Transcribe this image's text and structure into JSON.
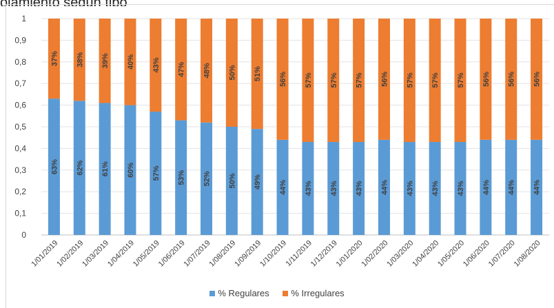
{
  "header": {
    "title_fragment": "ojamiento segun tipo"
  },
  "chart_data": {
    "type": "bar",
    "stacked": true,
    "categories": [
      "1/01/2019",
      "1/02/2019",
      "1/03/2019",
      "1/04/2019",
      "1/05/2019",
      "1/06/2019",
      "1/07/2019",
      "1/08/2019",
      "1/09/2019",
      "1/10/2019",
      "1/11/2019",
      "1/12/2019",
      "1/01/2020",
      "1/02/2020",
      "1/03/2020",
      "1/04/2020",
      "1/05/2020",
      "1/06/2020",
      "1/07/2020",
      "1/08/2020"
    ],
    "series": [
      {
        "name": "% Regulares",
        "color": "#5b9bd5",
        "values": [
          0.63,
          0.62,
          0.61,
          0.6,
          0.57,
          0.53,
          0.52,
          0.5,
          0.49,
          0.44,
          0.43,
          0.43,
          0.43,
          0.44,
          0.43,
          0.43,
          0.43,
          0.44,
          0.44,
          0.44
        ],
        "labels": [
          "63%",
          "62%",
          "61%",
          "60%",
          "57%",
          "53%",
          "52%",
          "50%",
          "49%",
          "44%",
          "43%",
          "43%",
          "43%",
          "44%",
          "43%",
          "43%",
          "43%",
          "44%",
          "44%",
          "44%"
        ]
      },
      {
        "name": "% Irregulares",
        "color": "#ed7d31",
        "values": [
          0.37,
          0.38,
          0.39,
          0.4,
          0.43,
          0.47,
          0.48,
          0.5,
          0.51,
          0.56,
          0.57,
          0.57,
          0.57,
          0.56,
          0.57,
          0.57,
          0.57,
          0.56,
          0.56,
          0.56
        ],
        "labels": [
          "37%",
          "38%",
          "39%",
          "40%",
          "43%",
          "47%",
          "48%",
          "50%",
          "51%",
          "56%",
          "57%",
          "57%",
          "57%",
          "56%",
          "57%",
          "57%",
          "57%",
          "56%",
          "56%",
          "56%"
        ]
      }
    ],
    "ylim": [
      0,
      1
    ],
    "yticks": [
      0,
      0.1,
      0.2,
      0.3,
      0.4,
      0.5,
      0.6,
      0.7,
      0.8,
      0.9,
      1
    ],
    "ytick_labels": [
      "0",
      "0,1",
      "0,2",
      "0,3",
      "0,4",
      "0,5",
      "0,6",
      "0,7",
      "0,8",
      "0,9",
      "1"
    ],
    "grid": true,
    "legend_position": "bottom"
  }
}
